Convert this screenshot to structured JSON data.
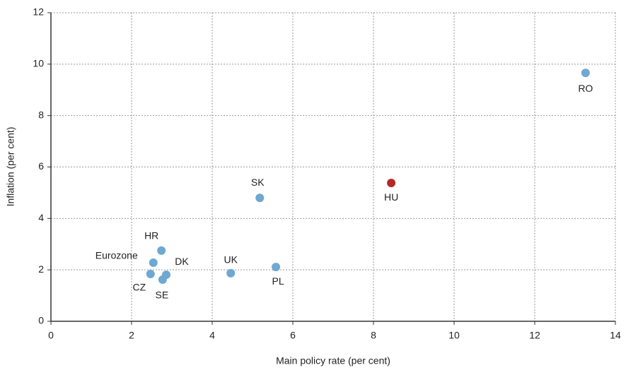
{
  "chart_data": {
    "type": "scatter",
    "xlabel": "Main policy rate (per cent)",
    "ylabel": "Inflation (per cent)",
    "labels": [
      "RO",
      "HU",
      "SK",
      "HR",
      "Eurozone",
      "DK",
      "CZ",
      "SE",
      "UK",
      "PL"
    ],
    "x": [
      13.26,
      8.44,
      5.18,
      2.74,
      2.54,
      2.86,
      2.47,
      2.77,
      4.46,
      5.58
    ],
    "y": [
      9.66,
      5.38,
      4.8,
      2.75,
      2.28,
      1.81,
      1.84,
      1.62,
      1.87,
      2.11
    ],
    "colors": [
      "#6fa8d0",
      "#b5282a",
      "#6fa8d0",
      "#6fa8d0",
      "#6fa8d0",
      "#6fa8d0",
      "#6fa8d0",
      "#6fa8d0",
      "#6fa8d0",
      "#6fa8d0"
    ],
    "xlim": [
      0,
      14
    ],
    "xticks": [
      0,
      2,
      4,
      6,
      8,
      10,
      12,
      14
    ],
    "ylim": [
      0,
      12
    ],
    "yticks": [
      0,
      2,
      4,
      6,
      8,
      10,
      12
    ],
    "grid": true
  }
}
